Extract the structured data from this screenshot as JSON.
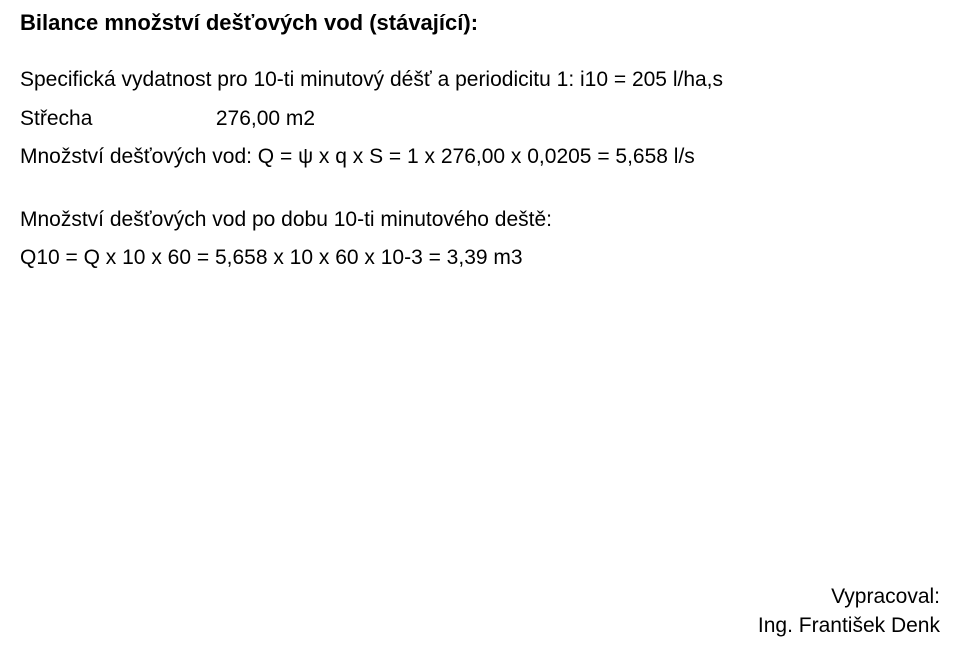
{
  "title": "Bilance množství dešťových vod (stávající):",
  "spec_line": "Specifická vydatnost pro 10-ti minutový déšť a periodicitu 1:  i10 = 205 l/ha,s",
  "roof": {
    "label": "Střecha",
    "value": "276,00 m2"
  },
  "qty_line": "Množství dešťových vod:   Q = ψ x q x S  = 1 x 276,00 x 0,0205 = 5,658 l/s",
  "qty10_heading": "Množství dešťových vod po dobu 10-ti minutového deště:",
  "qty10_formula": "Q10 = Q x 10 x 60 = 5,658 x 10 x 60 x 10-3 = 3,39 m3",
  "footer": {
    "prepared_label": "Vypracoval:",
    "author": "Ing. František Denk"
  },
  "style": {
    "background_color": "#ffffff",
    "text_color": "#000000",
    "title_fontsize_pt": 17,
    "body_fontsize_pt": 16,
    "font_family": "Arial"
  }
}
